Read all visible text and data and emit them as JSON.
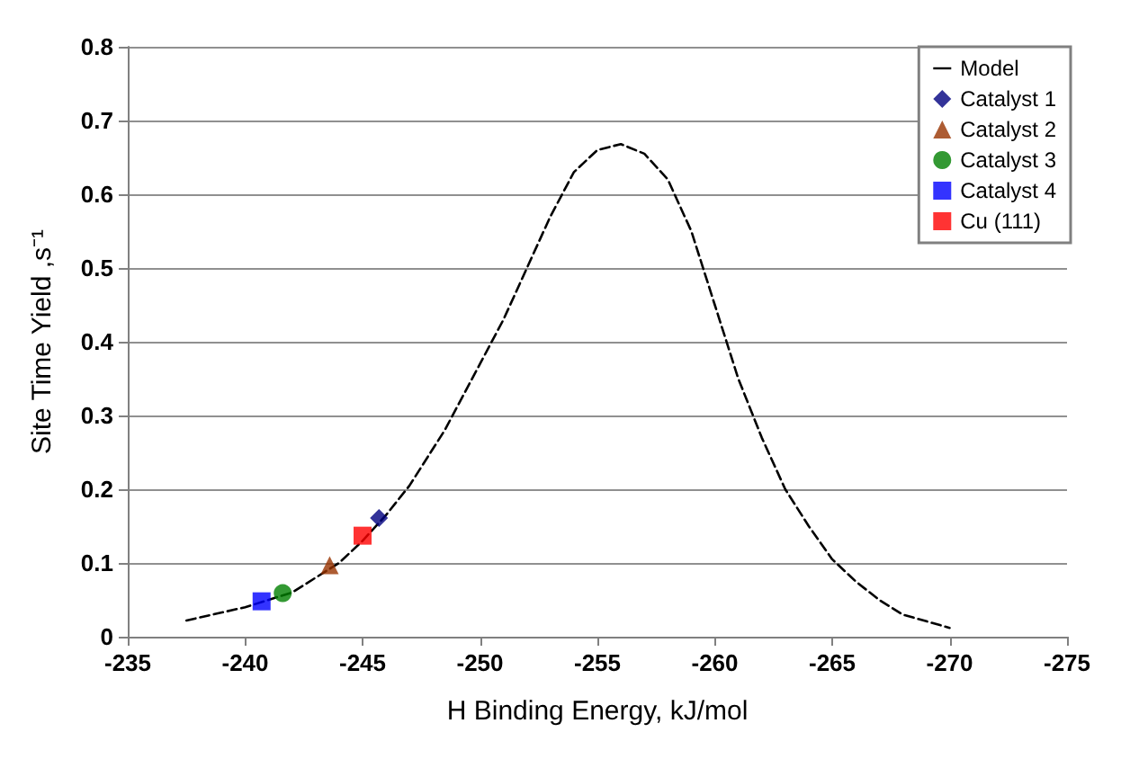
{
  "chart_data": {
    "type": "scatter",
    "xlabel": "H Binding Energy, kJ/mol",
    "ylabel": "Site Time Yield ,s⁻¹",
    "xlim": [
      -235,
      -275
    ],
    "xticks": [
      -235,
      -240,
      -245,
      -250,
      -255,
      -260,
      -265,
      -270,
      -275
    ],
    "ylim": [
      0,
      0.8
    ],
    "yticks": [
      0,
      0.1,
      0.2,
      0.3,
      0.4,
      0.5,
      0.6,
      0.7,
      0.8
    ],
    "grid": "y",
    "legend": "top right",
    "series": [
      {
        "name": "Model",
        "type": "line",
        "line_style": "dashed",
        "marker": "none",
        "color": "#000000",
        "x": [
          -237.5,
          -240,
          -242,
          -244,
          -245,
          -246,
          -247,
          -248.5,
          -250,
          -251,
          -252,
          -253,
          -254,
          -255,
          -256,
          -257,
          -258,
          -259,
          -260,
          -261,
          -262,
          -263,
          -264,
          -265,
          -266,
          -267,
          -268,
          -270
        ],
        "values": [
          0.022,
          0.04,
          0.06,
          0.1,
          0.13,
          0.165,
          0.205,
          0.28,
          0.37,
          0.43,
          0.5,
          0.57,
          0.63,
          0.66,
          0.668,
          0.655,
          0.62,
          0.55,
          0.45,
          0.35,
          0.27,
          0.2,
          0.15,
          0.105,
          0.075,
          0.05,
          0.03,
          0.012
        ]
      },
      {
        "name": "Catalyst 1",
        "marker": "diamond",
        "color": "#000080",
        "x": [
          -245.7
        ],
        "values": [
          0.161
        ]
      },
      {
        "name": "Catalyst 2",
        "marker": "triangle",
        "color": "#993300",
        "x": [
          -243.6
        ],
        "values": [
          0.097
        ]
      },
      {
        "name": "Catalyst 3",
        "marker": "circle",
        "color": "#008000",
        "x": [
          -241.6
        ],
        "values": [
          0.059
        ]
      },
      {
        "name": "Catalyst 4",
        "marker": "square",
        "color": "#0000ff",
        "x": [
          -240.7
        ],
        "values": [
          0.048
        ]
      },
      {
        "name": "Cu (111)",
        "marker": "square",
        "color": "#ff0000",
        "x": [
          -245.0
        ],
        "values": [
          0.137
        ]
      }
    ]
  }
}
